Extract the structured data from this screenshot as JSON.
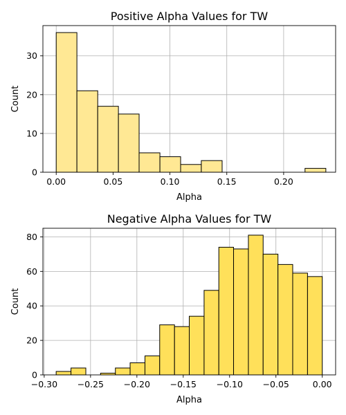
{
  "chart_data": [
    {
      "type": "bar",
      "title": "Positive Alpha Values for TW",
      "xlabel": "Alpha",
      "ylabel": "Count",
      "color": "#ffe894",
      "edge_color": "#000000",
      "grid": true,
      "xlim": [
        -0.0117,
        0.2457
      ],
      "ylim": [
        0,
        37.8
      ],
      "xticks": [
        0.0,
        0.05,
        0.1,
        0.15,
        0.2
      ],
      "xtick_labels": [
        "0.00",
        "0.05",
        "0.10",
        "0.15",
        "0.20"
      ],
      "yticks": [
        0,
        10,
        20,
        30
      ],
      "ytick_labels": [
        "0",
        "10",
        "20",
        "30"
      ],
      "bins": [
        {
          "x0": 0.0,
          "x1": 0.0182,
          "value": 36
        },
        {
          "x0": 0.0182,
          "x1": 0.0365,
          "value": 21
        },
        {
          "x0": 0.0365,
          "x1": 0.0547,
          "value": 17
        },
        {
          "x0": 0.0547,
          "x1": 0.0729,
          "value": 15
        },
        {
          "x0": 0.0729,
          "x1": 0.0912,
          "value": 5
        },
        {
          "x0": 0.0912,
          "x1": 0.1094,
          "value": 4
        },
        {
          "x0": 0.1094,
          "x1": 0.1276,
          "value": 2
        },
        {
          "x0": 0.1276,
          "x1": 0.1459,
          "value": 3
        },
        {
          "x0": 0.1459,
          "x1": 0.1641,
          "value": 0
        },
        {
          "x0": 0.1641,
          "x1": 0.1823,
          "value": 0
        },
        {
          "x0": 0.1823,
          "x1": 0.2006,
          "value": 0
        },
        {
          "x0": 0.2006,
          "x1": 0.2188,
          "value": 0
        },
        {
          "x0": 0.2188,
          "x1": 0.2371,
          "value": 1
        }
      ]
    },
    {
      "type": "bar",
      "title": "Negative Alpha Values for TW",
      "xlabel": "Alpha",
      "ylabel": "Count",
      "color": "#ffe05a",
      "edge_color": "#000000",
      "grid": true,
      "xlim": [
        -0.3014,
        0.0144
      ],
      "ylim": [
        0,
        85
      ],
      "xticks": [
        -0.3,
        -0.25,
        -0.2,
        -0.15,
        -0.1,
        -0.05,
        0.0
      ],
      "xtick_labels": [
        "−0.30",
        "−0.25",
        "−0.20",
        "−0.15",
        "−0.10",
        "−0.05",
        "0.00"
      ],
      "yticks": [
        0,
        20,
        40,
        60,
        80
      ],
      "ytick_labels": [
        "0",
        "20",
        "40",
        "60",
        "80"
      ],
      "bins": [
        {
          "x0": -0.2871,
          "x1": -0.2711,
          "value": 2
        },
        {
          "x0": -0.2711,
          "x1": -0.2551,
          "value": 4
        },
        {
          "x0": -0.2551,
          "x1": -0.2392,
          "value": 0
        },
        {
          "x0": -0.2392,
          "x1": -0.2232,
          "value": 1
        },
        {
          "x0": -0.2232,
          "x1": -0.2073,
          "value": 4
        },
        {
          "x0": -0.2073,
          "x1": -0.1913,
          "value": 7
        },
        {
          "x0": -0.1913,
          "x1": -0.1754,
          "value": 11
        },
        {
          "x0": -0.1754,
          "x1": -0.1594,
          "value": 29
        },
        {
          "x0": -0.1594,
          "x1": -0.1435,
          "value": 28
        },
        {
          "x0": -0.1435,
          "x1": -0.1275,
          "value": 34
        },
        {
          "x0": -0.1275,
          "x1": -0.1116,
          "value": 49
        },
        {
          "x0": -0.1116,
          "x1": -0.0957,
          "value": 74
        },
        {
          "x0": -0.0957,
          "x1": -0.0797,
          "value": 73
        },
        {
          "x0": -0.0797,
          "x1": -0.0638,
          "value": 81
        },
        {
          "x0": -0.0638,
          "x1": -0.0478,
          "value": 70
        },
        {
          "x0": -0.0478,
          "x1": -0.0319,
          "value": 64
        },
        {
          "x0": -0.0319,
          "x1": -0.0159,
          "value": 59
        },
        {
          "x0": -0.0159,
          "x1": 0.0,
          "value": 57
        }
      ]
    }
  ]
}
